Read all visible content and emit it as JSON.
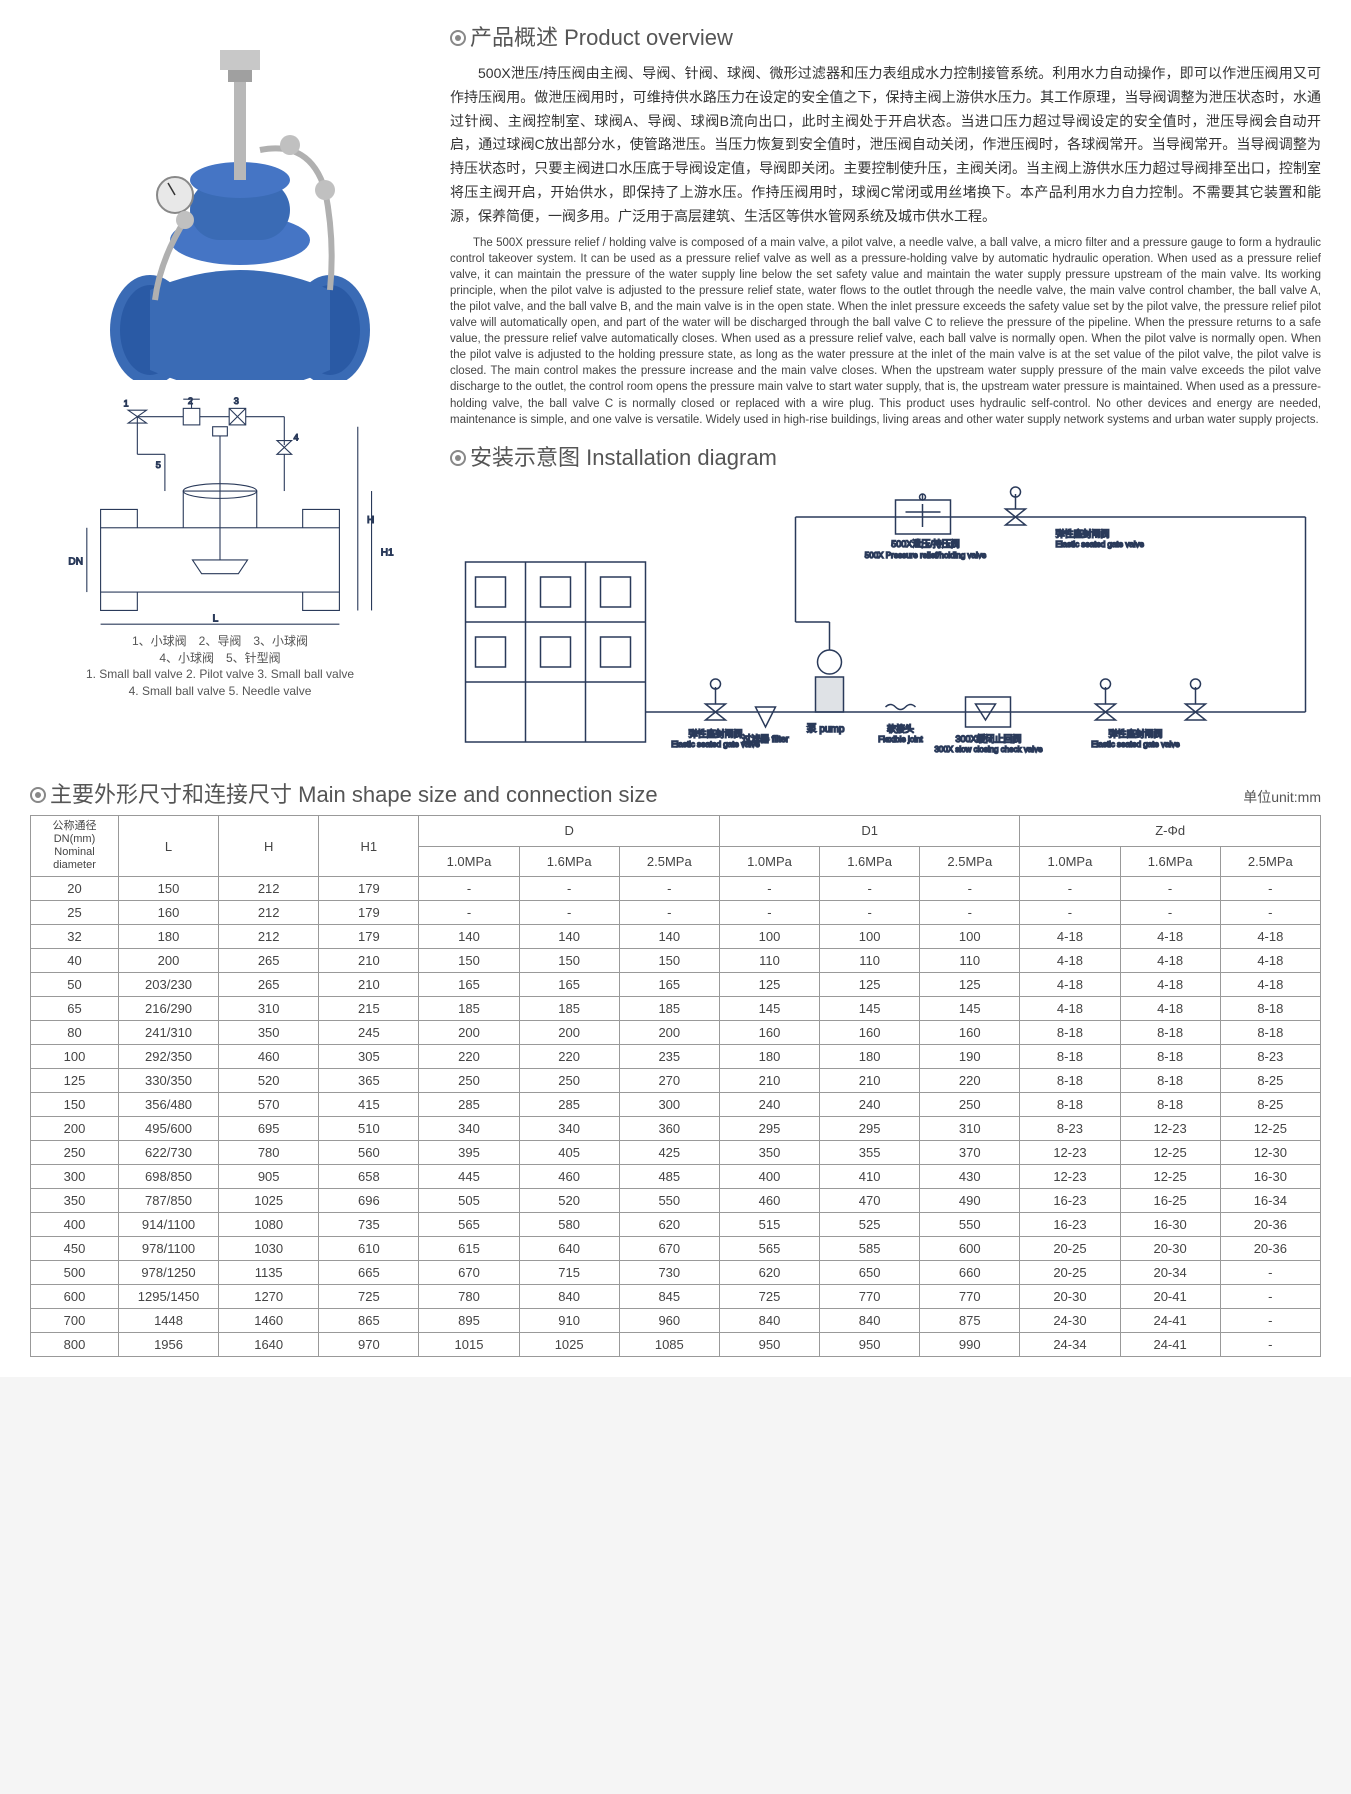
{
  "sections": {
    "overview_title": "产品概述 Product overview",
    "install_title": "安装示意图 Installation diagram",
    "table_title": "主要外形尺寸和连接尺寸 Main shape size and connection size",
    "unit_label": "单位unit:mm"
  },
  "overview": {
    "cn": "500X泄压/持压阀由主阀、导阀、针阀、球阀、微形过滤器和压力表组成水力控制接管系统。利用水力自动操作，即可以作泄压阀用又可作持压阀用。做泄压阀用时，可维持供水路压力在设定的安全值之下，保持主阀上游供水压力。其工作原理，当导阀调整为泄压状态时，水通过针阀、主阀控制室、球阀A、导阀、球阀B流向出口，此时主阀处于开启状态。当进口压力超过导阀设定的安全值时，泄压导阀会自动开启，通过球阀C放出部分水，使管路泄压。当压力恢复到安全值时，泄压阀自动关闭，作泄压阀时，各球阀常开。当导阀常开。当导阀调整为持压状态时，只要主阀进口水压底于导阀设定值，导阀即关闭。主要控制使升压，主阀关闭。当主阀上游供水压力超过导阀排至出口，控制室将压主阀开启，开始供水，即保持了上游水压。作持压阀用时，球阀C常闭或用丝堵换下。本产品利用水力自力控制。不需要其它装置和能源，保养简便，一阀多用。广泛用于高层建筑、生活区等供水管网系统及城市供水工程。",
    "en": "The 500X pressure relief / holding valve is composed of a main valve, a pilot valve, a needle valve, a ball valve, a micro filter and a pressure gauge to form a hydraulic control takeover system. It can be used as a pressure relief valve as well as a pressure-holding valve by automatic hydraulic operation. When used as a pressure relief valve, it can maintain the pressure of the water supply line below the set safety value and maintain the water supply pressure upstream of the main valve. Its working principle, when the pilot valve is adjusted to the pressure relief state, water flows to the outlet through the needle valve, the main valve control chamber, the ball valve A, the pilot valve, and the ball valve B, and the main valve is in the open state. When the inlet pressure exceeds the safety value set by the pilot valve, the pressure relief pilot valve will automatically open, and part of the water will be discharged through the ball valve C to relieve the pressure of the pipeline. When the pressure returns to a safe value, the pressure relief valve automatically closes. When used as a pressure relief valve, each ball valve is normally open. When the pilot valve is normally open. When the pilot valve is adjusted to the holding pressure state, as long as the water pressure at the inlet of the main valve is at the set value of the pilot valve, the pilot valve is closed. The main control makes the pressure increase and the main valve closes. When the upstream water supply pressure of the main valve exceeds the pilot valve discharge to the outlet, the control room opens the pressure main valve to start water supply, that is, the upstream water pressure is maintained. When used as a pressure-holding valve, the ball valve C is normally closed or replaced with a wire plug. This product uses hydraulic self-control. No other devices and energy are needed, maintenance is simple, and one valve is versatile. Widely used in high-rise buildings, living areas and other water supply network systems and urban water supply projects."
  },
  "diagram_caption": {
    "line1_cn": "1、小球阀　2、导阀　3、小球阀",
    "line2_cn": "4、小球阀　5、针型阀",
    "line1_en": "1. Small ball valve 2. Pilot valve 3. Small ball valve",
    "line2_en": "4. Small ball valve 5. Needle valve"
  },
  "install_labels": {
    "valve_500x_cn": "500X泄压/持压阀",
    "valve_500x_en": "500X Pressure relief / holding valve",
    "elastic_gate_cn": "弹性座封闸阀",
    "elastic_gate_en": "Elastic seated gate valve",
    "flex_joint_cn": "软接头",
    "flex_joint_en": "Flexible joint",
    "check_300x_cn": "300X缓闭止回阀",
    "check_300x_en": "300X slow closing check valve",
    "pump_cn": "泵",
    "pump_en": "pump",
    "filter_cn": "过滤器",
    "filter_en": "filter"
  },
  "table": {
    "headers": {
      "dn_cn": "公称通径",
      "dn_mm": "DN(mm)",
      "dn_en": "Nominal diameter",
      "L": "L",
      "H": "H",
      "H1": "H1",
      "D": "D",
      "D1": "D1",
      "Zphi": "Z-Φd",
      "p10": "1.0MPa",
      "p16": "1.6MPa",
      "p25": "2.5MPa"
    },
    "rows": [
      {
        "dn": "20",
        "L": "150",
        "H": "212",
        "H1": "179",
        "D10": "-",
        "D16": "-",
        "D25": "-",
        "D110": "-",
        "D116": "-",
        "D125": "-",
        "Z10": "-",
        "Z16": "-",
        "Z25": "-"
      },
      {
        "dn": "25",
        "L": "160",
        "H": "212",
        "H1": "179",
        "D10": "-",
        "D16": "-",
        "D25": "-",
        "D110": "-",
        "D116": "-",
        "D125": "-",
        "Z10": "-",
        "Z16": "-",
        "Z25": "-"
      },
      {
        "dn": "32",
        "L": "180",
        "H": "212",
        "H1": "179",
        "D10": "140",
        "D16": "140",
        "D25": "140",
        "D110": "100",
        "D116": "100",
        "D125": "100",
        "Z10": "4-18",
        "Z16": "4-18",
        "Z25": "4-18"
      },
      {
        "dn": "40",
        "L": "200",
        "H": "265",
        "H1": "210",
        "D10": "150",
        "D16": "150",
        "D25": "150",
        "D110": "110",
        "D116": "110",
        "D125": "110",
        "Z10": "4-18",
        "Z16": "4-18",
        "Z25": "4-18"
      },
      {
        "dn": "50",
        "L": "203/230",
        "H": "265",
        "H1": "210",
        "D10": "165",
        "D16": "165",
        "D25": "165",
        "D110": "125",
        "D116": "125",
        "D125": "125",
        "Z10": "4-18",
        "Z16": "4-18",
        "Z25": "4-18"
      },
      {
        "dn": "65",
        "L": "216/290",
        "H": "310",
        "H1": "215",
        "D10": "185",
        "D16": "185",
        "D25": "185",
        "D110": "145",
        "D116": "145",
        "D125": "145",
        "Z10": "4-18",
        "Z16": "4-18",
        "Z25": "8-18"
      },
      {
        "dn": "80",
        "L": "241/310",
        "H": "350",
        "H1": "245",
        "D10": "200",
        "D16": "200",
        "D25": "200",
        "D110": "160",
        "D116": "160",
        "D125": "160",
        "Z10": "8-18",
        "Z16": "8-18",
        "Z25": "8-18"
      },
      {
        "dn": "100",
        "L": "292/350",
        "H": "460",
        "H1": "305",
        "D10": "220",
        "D16": "220",
        "D25": "235",
        "D110": "180",
        "D116": "180",
        "D125": "190",
        "Z10": "8-18",
        "Z16": "8-18",
        "Z25": "8-23"
      },
      {
        "dn": "125",
        "L": "330/350",
        "H": "520",
        "H1": "365",
        "D10": "250",
        "D16": "250",
        "D25": "270",
        "D110": "210",
        "D116": "210",
        "D125": "220",
        "Z10": "8-18",
        "Z16": "8-18",
        "Z25": "8-25"
      },
      {
        "dn": "150",
        "L": "356/480",
        "H": "570",
        "H1": "415",
        "D10": "285",
        "D16": "285",
        "D25": "300",
        "D110": "240",
        "D116": "240",
        "D125": "250",
        "Z10": "8-18",
        "Z16": "8-18",
        "Z25": "8-25"
      },
      {
        "dn": "200",
        "L": "495/600",
        "H": "695",
        "H1": "510",
        "D10": "340",
        "D16": "340",
        "D25": "360",
        "D110": "295",
        "D116": "295",
        "D125": "310",
        "Z10": "8-23",
        "Z16": "12-23",
        "Z25": "12-25"
      },
      {
        "dn": "250",
        "L": "622/730",
        "H": "780",
        "H1": "560",
        "D10": "395",
        "D16": "405",
        "D25": "425",
        "D110": "350",
        "D116": "355",
        "D125": "370",
        "Z10": "12-23",
        "Z16": "12-25",
        "Z25": "12-30"
      },
      {
        "dn": "300",
        "L": "698/850",
        "H": "905",
        "H1": "658",
        "D10": "445",
        "D16": "460",
        "D25": "485",
        "D110": "400",
        "D116": "410",
        "D125": "430",
        "Z10": "12-23",
        "Z16": "12-25",
        "Z25": "16-30"
      },
      {
        "dn": "350",
        "L": "787/850",
        "H": "1025",
        "H1": "696",
        "D10": "505",
        "D16": "520",
        "D25": "550",
        "D110": "460",
        "D116": "470",
        "D125": "490",
        "Z10": "16-23",
        "Z16": "16-25",
        "Z25": "16-34"
      },
      {
        "dn": "400",
        "L": "914/1100",
        "H": "1080",
        "H1": "735",
        "D10": "565",
        "D16": "580",
        "D25": "620",
        "D110": "515",
        "D116": "525",
        "D125": "550",
        "Z10": "16-23",
        "Z16": "16-30",
        "Z25": "20-36"
      },
      {
        "dn": "450",
        "L": "978/1100",
        "H": "1030",
        "H1": "610",
        "D10": "615",
        "D16": "640",
        "D25": "670",
        "D110": "565",
        "D116": "585",
        "D125": "600",
        "Z10": "20-25",
        "Z16": "20-30",
        "Z25": "20-36"
      },
      {
        "dn": "500",
        "L": "978/1250",
        "H": "1135",
        "H1": "665",
        "D10": "670",
        "D16": "715",
        "D25": "730",
        "D110": "620",
        "D116": "650",
        "D125": "660",
        "Z10": "20-25",
        "Z16": "20-34",
        "Z25": "-"
      },
      {
        "dn": "600",
        "L": "1295/1450",
        "H": "1270",
        "H1": "725",
        "D10": "780",
        "D16": "840",
        "D25": "845",
        "D110": "725",
        "D116": "770",
        "D125": "770",
        "Z10": "20-30",
        "Z16": "20-41",
        "Z25": "-"
      },
      {
        "dn": "700",
        "L": "1448",
        "H": "1460",
        "H1": "865",
        "D10": "895",
        "D16": "910",
        "D25": "960",
        "D110": "840",
        "D116": "840",
        "D125": "875",
        "Z10": "24-30",
        "Z16": "24-41",
        "Z25": "-"
      },
      {
        "dn": "800",
        "L": "1956",
        "H": "1640",
        "H1": "970",
        "D10": "1015",
        "D16": "1025",
        "D25": "1085",
        "D110": "950",
        "D116": "950",
        "D125": "990",
        "Z10": "24-34",
        "Z16": "24-41",
        "Z25": "-"
      }
    ]
  },
  "colors": {
    "valve_blue": "#3a6bb5",
    "valve_dark": "#1f3a6b",
    "metal": "#c0c0c0",
    "line": "#2a3a5a"
  }
}
